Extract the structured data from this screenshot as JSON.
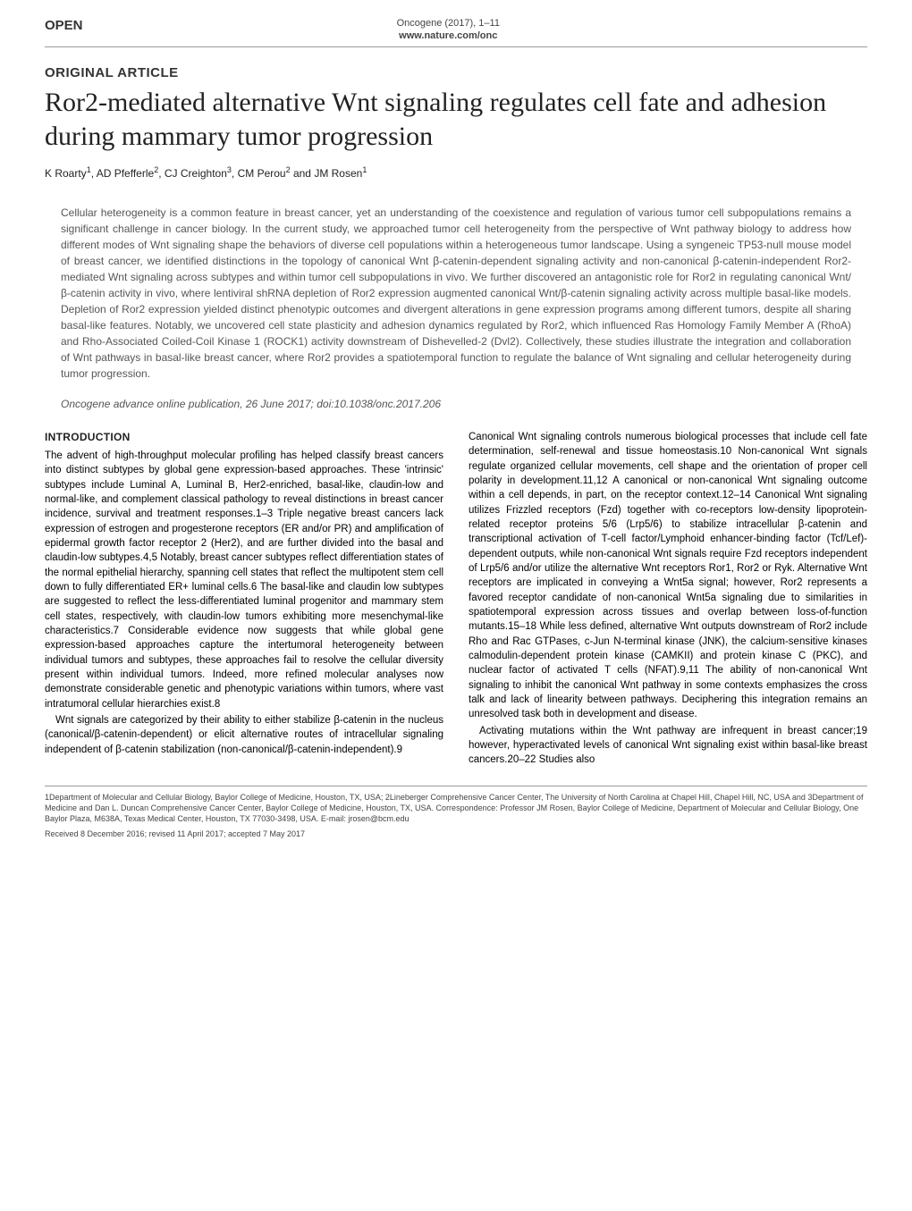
{
  "header": {
    "open_label": "OPEN",
    "journal_ref": "Oncogene (2017), 1–11",
    "journal_url": "www.nature.com/onc"
  },
  "article": {
    "type_label": "ORIGINAL ARTICLE",
    "title": "Ror2-mediated alternative Wnt signaling regulates cell fate and adhesion during mammary tumor progression",
    "authors_html": "K Roarty<sup>1</sup>, AD Pfefferle<sup>2</sup>, CJ Creighton<sup>3</sup>, CM Perou<sup>2</sup> and JM Rosen<sup>1</sup>"
  },
  "abstract": "Cellular heterogeneity is a common feature in breast cancer, yet an understanding of the coexistence and regulation of various tumor cell subpopulations remains a significant challenge in cancer biology. In the current study, we approached tumor cell heterogeneity from the perspective of Wnt pathway biology to address how different modes of Wnt signaling shape the behaviors of diverse cell populations within a heterogeneous tumor landscape. Using a syngeneic TP53-null mouse model of breast cancer, we identified distinctions in the topology of canonical Wnt β-catenin-dependent signaling activity and non-canonical β-catenin-independent Ror2-mediated Wnt signaling across subtypes and within tumor cell subpopulations in vivo. We further discovered an antagonistic role for Ror2 in regulating canonical Wnt/β-catenin activity in vivo, where lentiviral shRNA depletion of Ror2 expression augmented canonical Wnt/β-catenin signaling activity across multiple basal-like models. Depletion of Ror2 expression yielded distinct phenotypic outcomes and divergent alterations in gene expression programs among different tumors, despite all sharing basal-like features. Notably, we uncovered cell state plasticity and adhesion dynamics regulated by Ror2, which influenced Ras Homology Family Member A (RhoA) and Rho-Associated Coiled-Coil Kinase 1 (ROCK1) activity downstream of Dishevelled-2 (Dvl2). Collectively, these studies illustrate the integration and collaboration of Wnt pathways in basal-like breast cancer, where Ror2 provides a spatiotemporal function to regulate the balance of Wnt signaling and cellular heterogeneity during tumor progression.",
  "citation": "Oncogene advance online publication, 26 June 2017; doi:10.1038/onc.2017.206",
  "body": {
    "section_heading": "INTRODUCTION",
    "left_p1": "The advent of high-throughput molecular profiling has helped classify breast cancers into distinct subtypes by global gene expression-based approaches. These 'intrinsic' subtypes include Luminal A, Luminal B, Her2-enriched, basal-like, claudin-low and normal-like, and complement classical pathology to reveal distinctions in breast cancer incidence, survival and treatment responses.1–3 Triple negative breast cancers lack expression of estrogen and progesterone receptors (ER and/or PR) and amplification of epidermal growth factor receptor 2 (Her2), and are further divided into the basal and claudin-low subtypes.4,5 Notably, breast cancer subtypes reflect differentiation states of the normal epithelial hierarchy, spanning cell states that reflect the multipotent stem cell down to fully differentiated ER+ luminal cells.6 The basal-like and claudin low subtypes are suggested to reflect the less-differentiated luminal progenitor and mammary stem cell states, respectively, with claudin-low tumors exhibiting more mesenchymal-like characteristics.7 Considerable evidence now suggests that while global gene expression-based approaches capture the intertumoral heterogeneity between individual tumors and subtypes, these approaches fail to resolve the cellular diversity present within individual tumors. Indeed, more refined molecular analyses now demonstrate considerable genetic and phenotypic variations within tumors, where vast intratumoral cellular hierarchies exist.8",
    "left_p2": "Wnt signals are categorized by their ability to either stabilize β-catenin in the nucleus (canonical/β-catenin-dependent) or elicit alternative routes of intracellular signaling independent of β-catenin stabilization (non-canonical/β-catenin-independent).9",
    "right_p1": "Canonical Wnt signaling controls numerous biological processes that include cell fate determination, self-renewal and tissue homeostasis.10 Non-canonical Wnt signals regulate organized cellular movements, cell shape and the orientation of proper cell polarity in development.11,12 A canonical or non-canonical Wnt signaling outcome within a cell depends, in part, on the receptor context.12–14 Canonical Wnt signaling utilizes Frizzled receptors (Fzd) together with co-receptors low-density lipoprotein-related receptor proteins 5/6 (Lrp5/6) to stabilize intracellular β-catenin and transcriptional activation of T-cell factor/Lymphoid enhancer-binding factor (Tcf/Lef)-dependent outputs, while non-canonical Wnt signals require Fzd receptors independent of Lrp5/6 and/or utilize the alternative Wnt receptors Ror1, Ror2 or Ryk. Alternative Wnt receptors are implicated in conveying a Wnt5a signal; however, Ror2 represents a favored receptor candidate of non-canonical Wnt5a signaling due to similarities in spatiotemporal expression across tissues and overlap between loss-of-function mutants.15–18 While less defined, alternative Wnt outputs downstream of Ror2 include Rho and Rac GTPases, c-Jun N-terminal kinase (JNK), the calcium-sensitive kinases calmodulin-dependent protein kinase (CAMKII) and protein kinase C (PKC), and nuclear factor of activated T cells (NFAT).9,11 The ability of non-canonical Wnt signaling to inhibit the canonical Wnt pathway in some contexts emphasizes the cross talk and lack of linearity between pathways. Deciphering this integration remains an unresolved task both in development and disease.",
    "right_p2": "Activating mutations within the Wnt pathway are infrequent in breast cancer;19 however, hyperactivated levels of canonical Wnt signaling exist within basal-like breast cancers.20–22 Studies also"
  },
  "affiliations": "1Department of Molecular and Cellular Biology, Baylor College of Medicine, Houston, TX, USA; 2Lineberger Comprehensive Cancer Center, The University of North Carolina at Chapel Hill, Chapel Hill, NC, USA and 3Department of Medicine and Dan L. Duncan Comprehensive Cancer Center, Baylor College of Medicine, Houston, TX, USA. Correspondence: Professor JM Rosen, Baylor College of Medicine, Department of Molecular and Cellular Biology, One Baylor Plaza, M638A, Texas Medical Center, Houston, TX 77030-3498, USA. E-mail: jrosen@bcm.edu",
  "received": "Received 8 December 2016; revised 11 April 2017; accepted 7 May 2017"
}
